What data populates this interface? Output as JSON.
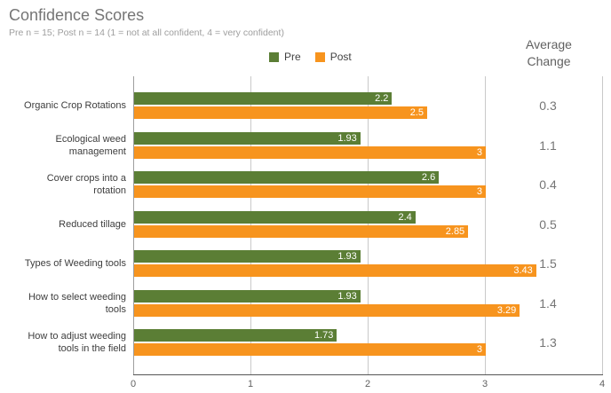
{
  "colors": {
    "pre": "#5b7e35",
    "post": "#f7941e",
    "title_text": "#757575",
    "subtitle_text": "#9e9e9e",
    "average_text": "#757575"
  },
  "chart_data": {
    "type": "bar",
    "orientation": "horizontal",
    "title": "Confidence Scores",
    "subtitle": "Pre n = 15; Post n = 14 (1 = not at all confident, 4 = very confident)",
    "xlabel": "",
    "ylabel": "",
    "xlim": [
      0,
      4
    ],
    "x_ticks": [
      "0",
      "1",
      "2",
      "3",
      "4"
    ],
    "grid": true,
    "legend_position": "top",
    "categories": [
      "Organic Crop Rotations",
      "Ecological weed management",
      "Cover crops into a rotation",
      "Reduced tillage",
      "Types of Weeding tools",
      "How to select weeding tools",
      "How to adjust weeding tools in the field"
    ],
    "category_lines": [
      [
        "Organic Crop Rotations"
      ],
      [
        "Ecological weed",
        "management"
      ],
      [
        "Cover crops into a",
        "rotation"
      ],
      [
        "Reduced tillage"
      ],
      [
        "Types of Weeding tools"
      ],
      [
        "How to select weeding",
        "tools"
      ],
      [
        "How to adjust weeding",
        "tools in the field"
      ]
    ],
    "series": [
      {
        "name": "Pre",
        "color": "#5b7e35",
        "values": [
          2.2,
          1.93,
          2.6,
          2.4,
          1.93,
          1.93,
          1.73
        ],
        "labels": [
          "2.2",
          "1.93",
          "2.6",
          "2.4",
          "1.93",
          "1.93",
          "1.73"
        ]
      },
      {
        "name": "Post",
        "color": "#f7941e",
        "values": [
          2.5,
          3,
          3,
          2.85,
          3.43,
          3.29,
          3
        ],
        "labels": [
          "2.5",
          "3",
          "3",
          "2.85",
          "3.43",
          "3.29",
          "3"
        ]
      }
    ],
    "average_change": {
      "header_line1": "Average",
      "header_line2": "Change",
      "values": [
        "0.3",
        "1.1",
        "0.4",
        "0.5",
        "1.5",
        "1.4",
        "1.3"
      ]
    }
  }
}
